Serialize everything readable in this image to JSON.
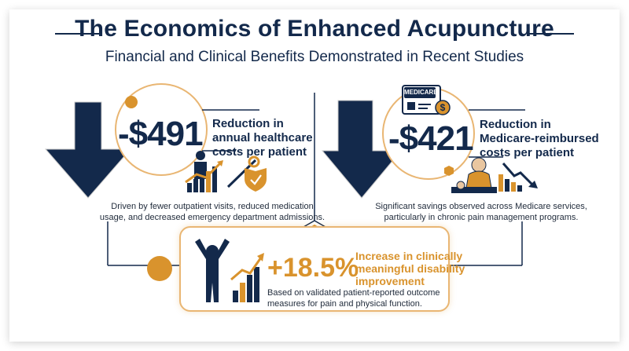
{
  "header": {
    "title": "The Economics of Enhanced Acupuncture",
    "subtitle": "Financial and Clinical Benefits Demonstrated in Recent Studies"
  },
  "left_stat": {
    "value": "-$491",
    "heading_line1": "Reduction in",
    "heading_line2": "annual healthcare",
    "heading_line3": "costs per patient",
    "note_line1": "Driven by fewer outpatient visits, reduced medication",
    "note_line2": "usage, and decreased emergency department admissions."
  },
  "right_stat": {
    "badge": "MEDICARE",
    "value": "-$421",
    "heading_line1": "Reduction in",
    "heading_line2": "Medicare-reimbursed",
    "heading_line3": "costs per patient",
    "note_line1": "Significant savings observed across Medicare services,",
    "note_line2": "particularly in chronic pain management programs."
  },
  "center_stat": {
    "value": "+18.5%",
    "heading_line1": "Increase in clinically",
    "heading_line2": "meaningful disability",
    "heading_line3": "improvement",
    "note_line1": "Based on validated patient-reported outcome",
    "note_line2": "measures for pain and physical function."
  },
  "colors": {
    "navy": "#13294b",
    "gold": "#d9932d",
    "light_gold": "#e9b673"
  },
  "icons": [
    "down-arrow-icon",
    "person-chart-icon",
    "acupuncture-needle-icon",
    "shield-check-icon",
    "medicare-card-icon",
    "dollar-coin-icon",
    "patient-acupuncture-icon",
    "declining-chart-icon",
    "hexagon-icon",
    "triumphant-person-icon",
    "rising-bars-icon"
  ]
}
